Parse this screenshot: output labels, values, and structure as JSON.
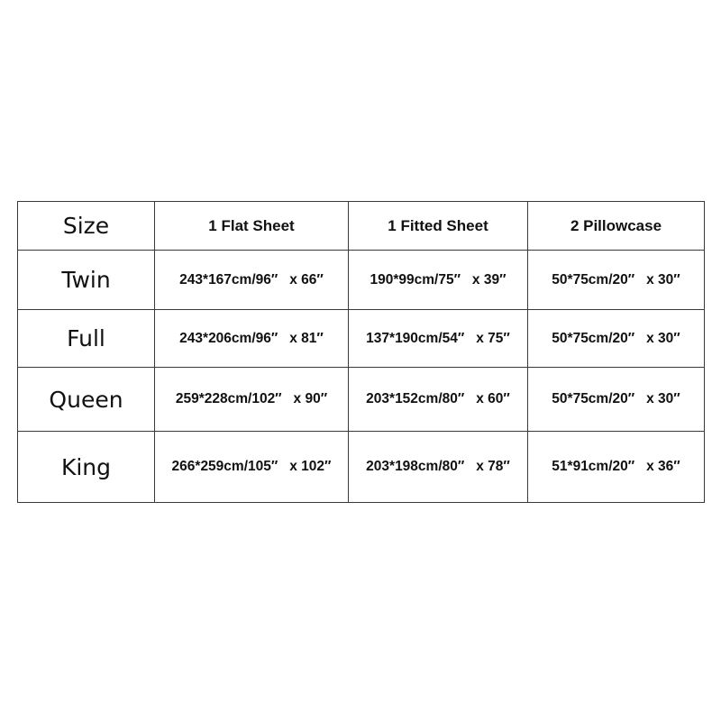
{
  "table": {
    "headers": [
      "Size",
      "1 Flat Sheet",
      "1 Fitted Sheet",
      "2 Pillowcase"
    ],
    "rows": [
      {
        "size": "Twin",
        "flat": "243*167cm/96″   x 66″",
        "fitted": "190*99cm/75″   x 39″",
        "pillow": "50*75cm/20″   x 30″"
      },
      {
        "size": "Full",
        "flat": "243*206cm/96″   x 81″",
        "fitted": "137*190cm/54″   x 75″",
        "pillow": "50*75cm/20″   x 30″"
      },
      {
        "size": "Queen",
        "flat": "259*228cm/102″   x 90″",
        "fitted": "203*152cm/80″   x 60″",
        "pillow": "50*75cm/20″   x 30″"
      },
      {
        "size": "King",
        "flat": "266*259cm/105″   x 102″",
        "fitted": "203*198cm/80″   x 78″",
        "pillow": "51*91cm/20″   x 36″"
      }
    ]
  }
}
